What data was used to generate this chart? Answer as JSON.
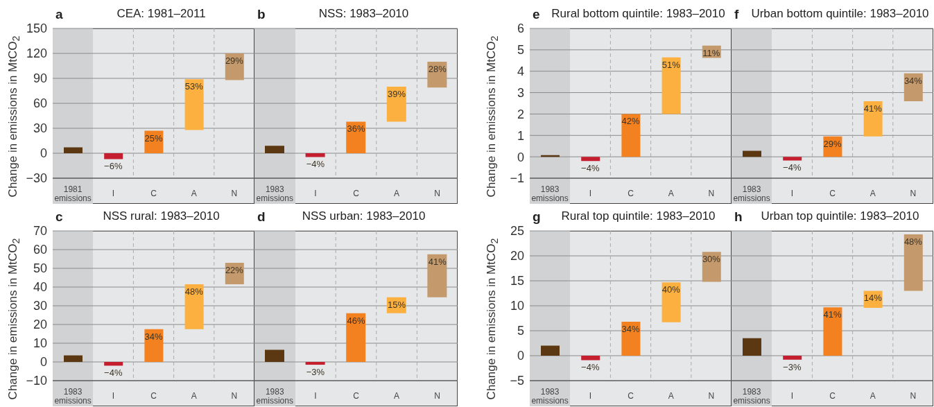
{
  "chart_data": [
    {
      "type": "bar",
      "title": "CEA: 1981–2011",
      "ylabel": "Change in emissions in MtCO$_{2}$",
      "categories": [
        "1981 emissions",
        "I",
        "C",
        "A",
        "N"
      ],
      "base": [
        0,
        0,
        0,
        28,
        88
      ],
      "values": [
        7,
        -7,
        27,
        61,
        32
      ],
      "colors": [
        "#5c3812",
        "#c41e2f",
        "#f38120",
        "#fbb040",
        "#c49a6c"
      ],
      "ylim": [
        -30,
        150
      ],
      "yticks": [
        -30,
        0,
        30,
        60,
        90,
        120,
        150
      ],
      "grid": true,
      "bands": [
        {
          "axis": "x",
          "from": "1981 emissions",
          "to": "1981 emissions",
          "color": "#d1d2d4"
        }
      ],
      "annotations": [
        "a",
        {
          "text": "−6%",
          "x": "I",
          "y": -7
        },
        {
          "text": "25%",
          "x": "C",
          "y": 27
        },
        {
          "text": "53%",
          "x": "A",
          "y": 89
        },
        {
          "text": "29%",
          "x": "N",
          "y": 120
        }
      ]
    },
    {
      "type": "bar",
      "title": "NSS: 1983–2010",
      "categories": [
        "1983 emissions",
        "I",
        "C",
        "A",
        "N"
      ],
      "base": [
        0,
        0,
        0,
        38,
        79
      ],
      "values": [
        9,
        -4.5,
        38,
        42,
        31
      ],
      "colors": [
        "#5c3812",
        "#c41e2f",
        "#f38120",
        "#fbb040",
        "#c49a6c"
      ],
      "ylim": [
        -30,
        150
      ],
      "yticks": [
        -30,
        0,
        30,
        60,
        90,
        120,
        150
      ],
      "tick_labels": "x",
      "grid": true,
      "bands": [
        {
          "axis": "x",
          "from": "1983 emissions",
          "to": "1983 emissions",
          "color": "#d1d2d4"
        }
      ],
      "annotations": [
        "b",
        {
          "text": "−4%",
          "x": "I",
          "y": -4.5
        },
        {
          "text": "36%",
          "x": "C",
          "y": 38
        },
        {
          "text": "39%",
          "x": "A",
          "y": 80
        },
        {
          "text": "28%",
          "x": "N",
          "y": 110
        }
      ]
    },
    {
      "type": "bar",
      "title": "Rural bottom quintile: 1983–2010",
      "ylabel": "Change in emissions in MtCO$_{2}$",
      "categories": [
        "1983 emissions",
        "I",
        "C",
        "A",
        "N"
      ],
      "base": [
        0,
        0,
        0,
        2,
        4.62
      ],
      "values": [
        0.08,
        -0.2,
        2,
        2.65,
        0.58
      ],
      "colors": [
        "#5c3812",
        "#c41e2f",
        "#f38120",
        "#fbb040",
        "#c49a6c"
      ],
      "ylim": [
        -1,
        6
      ],
      "yticks": [
        -1,
        0,
        1,
        2,
        3,
        4,
        5,
        6
      ],
      "grid": true,
      "bands": [
        {
          "axis": "x",
          "from": "1983 emissions",
          "to": "1983 emissions",
          "color": "#d1d2d4"
        }
      ],
      "annotations": [
        "e",
        {
          "text": "−4%",
          "x": "I",
          "y": -0.2
        },
        {
          "text": "42%",
          "x": "C",
          "y": 2
        },
        {
          "text": "51%",
          "x": "A",
          "y": 4.65
        },
        {
          "text": "11%",
          "x": "N",
          "y": 5.2
        }
      ]
    },
    {
      "type": "bar",
      "title": "Urban bottom quintile: 1983–2010",
      "categories": [
        "1983 emissions",
        "I",
        "C",
        "A",
        "N"
      ],
      "base": [
        0,
        0,
        0,
        0.95,
        2.6
      ],
      "values": [
        0.28,
        -0.17,
        0.95,
        1.65,
        1.3
      ],
      "colors": [
        "#5c3812",
        "#c41e2f",
        "#f38120",
        "#fbb040",
        "#c49a6c"
      ],
      "ylim": [
        -1,
        6
      ],
      "yticks": [
        -1,
        0,
        1,
        2,
        3,
        4,
        5,
        6
      ],
      "tick_labels": "x",
      "grid": true,
      "bands": [
        {
          "axis": "x",
          "from": "1983 emissions",
          "to": "1983 emissions",
          "color": "#d1d2d4"
        }
      ],
      "annotations": [
        "f",
        {
          "text": "−4%",
          "x": "I",
          "y": -0.17
        },
        {
          "text": "29%",
          "x": "C",
          "y": 0.95
        },
        {
          "text": "41%",
          "x": "A",
          "y": 2.6
        },
        {
          "text": "34%",
          "x": "N",
          "y": 3.9
        }
      ]
    },
    {
      "type": "bar",
      "title": "NSS rural: 1983–2010",
      "ylabel": "Change in emissions in MtCO$_{2}$",
      "categories": [
        "1983 emissions",
        "I",
        "C",
        "A",
        "N"
      ],
      "base": [
        0,
        0,
        0,
        17.5,
        41.5
      ],
      "values": [
        3.5,
        -2,
        17.5,
        24,
        11.5
      ],
      "colors": [
        "#5c3812",
        "#c41e2f",
        "#f38120",
        "#fbb040",
        "#c49a6c"
      ],
      "ylim": [
        -10,
        70
      ],
      "yticks": [
        -10,
        0,
        10,
        20,
        30,
        40,
        50,
        60,
        70
      ],
      "grid": true,
      "bands": [
        {
          "axis": "x",
          "from": "1983 emissions",
          "to": "1983 emissions",
          "color": "#d1d2d4"
        }
      ],
      "annotations": [
        "c",
        {
          "text": "−4%",
          "x": "I",
          "y": -2
        },
        {
          "text": "34%",
          "x": "C",
          "y": 17.5
        },
        {
          "text": "48%",
          "x": "A",
          "y": 41.5
        },
        {
          "text": "22%",
          "x": "N",
          "y": 53
        }
      ]
    },
    {
      "type": "bar",
      "title": "NSS urban: 1983–2010",
      "categories": [
        "1983 emissions",
        "I",
        "C",
        "A",
        "N"
      ],
      "base": [
        0,
        0,
        0,
        26,
        34.5
      ],
      "values": [
        6.5,
        -1.5,
        26,
        8.5,
        23
      ],
      "colors": [
        "#5c3812",
        "#c41e2f",
        "#f38120",
        "#fbb040",
        "#c49a6c"
      ],
      "ylim": [
        -10,
        70
      ],
      "yticks": [
        -10,
        0,
        10,
        20,
        30,
        40,
        50,
        60,
        70
      ],
      "tick_labels": "x",
      "grid": true,
      "bands": [
        {
          "axis": "x",
          "from": "1983 emissions",
          "to": "1983 emissions",
          "color": "#d1d2d4"
        }
      ],
      "annotations": [
        "d",
        {
          "text": "−3%",
          "x": "I",
          "y": -1.5
        },
        {
          "text": "46%",
          "x": "C",
          "y": 26
        },
        {
          "text": "15%",
          "x": "A",
          "y": 34.5
        },
        {
          "text": "41%",
          "x": "N",
          "y": 57.5
        }
      ]
    },
    {
      "type": "bar",
      "title": "Rural top quintile: 1983–2010",
      "ylabel": "Change in emissions in MtCO$_{2}$",
      "categories": [
        "1983 emissions",
        "I",
        "C",
        "A",
        "N"
      ],
      "base": [
        0,
        0,
        0,
        6.7,
        14.8
      ],
      "values": [
        2,
        -0.9,
        6.8,
        8,
        6
      ],
      "colors": [
        "#5c3812",
        "#c41e2f",
        "#f38120",
        "#fbb040",
        "#c49a6c"
      ],
      "ylim": [
        -5,
        25
      ],
      "yticks": [
        -5,
        0,
        5,
        10,
        15,
        20,
        25
      ],
      "grid": true,
      "bands": [
        {
          "axis": "x",
          "from": "1983 emissions",
          "to": "1983 emissions",
          "color": "#d1d2d4"
        }
      ],
      "annotations": [
        "g",
        {
          "text": "−4%",
          "x": "I",
          "y": -0.9
        },
        {
          "text": "34%",
          "x": "C",
          "y": 6.8
        },
        {
          "text": "40%",
          "x": "A",
          "y": 14.7
        },
        {
          "text": "30%",
          "x": "N",
          "y": 20.8
        }
      ]
    },
    {
      "type": "bar",
      "title": "Urban top quintile: 1983–2010",
      "categories": [
        "1983 emissions",
        "I",
        "C",
        "A",
        "N"
      ],
      "base": [
        0,
        0,
        0,
        9.6,
        13
      ],
      "values": [
        3.5,
        -0.8,
        9.7,
        3.4,
        11.3
      ],
      "colors": [
        "#5c3812",
        "#c41e2f",
        "#f38120",
        "#fbb040",
        "#c49a6c"
      ],
      "ylim": [
        -5,
        25
      ],
      "yticks": [
        -5,
        0,
        5,
        10,
        15,
        20,
        25
      ],
      "tick_labels": "x",
      "grid": true,
      "bands": [
        {
          "axis": "x",
          "from": "1983 emissions",
          "to": "1983 emissions",
          "color": "#d1d2d4"
        }
      ],
      "annotations": [
        "h",
        {
          "text": "−3%",
          "x": "I",
          "y": -0.8
        },
        {
          "text": "41%",
          "x": "C",
          "y": 9.7
        },
        {
          "text": "14%",
          "x": "A",
          "y": 13
        },
        {
          "text": "48%",
          "x": "N",
          "y": 24.3
        }
      ]
    }
  ]
}
